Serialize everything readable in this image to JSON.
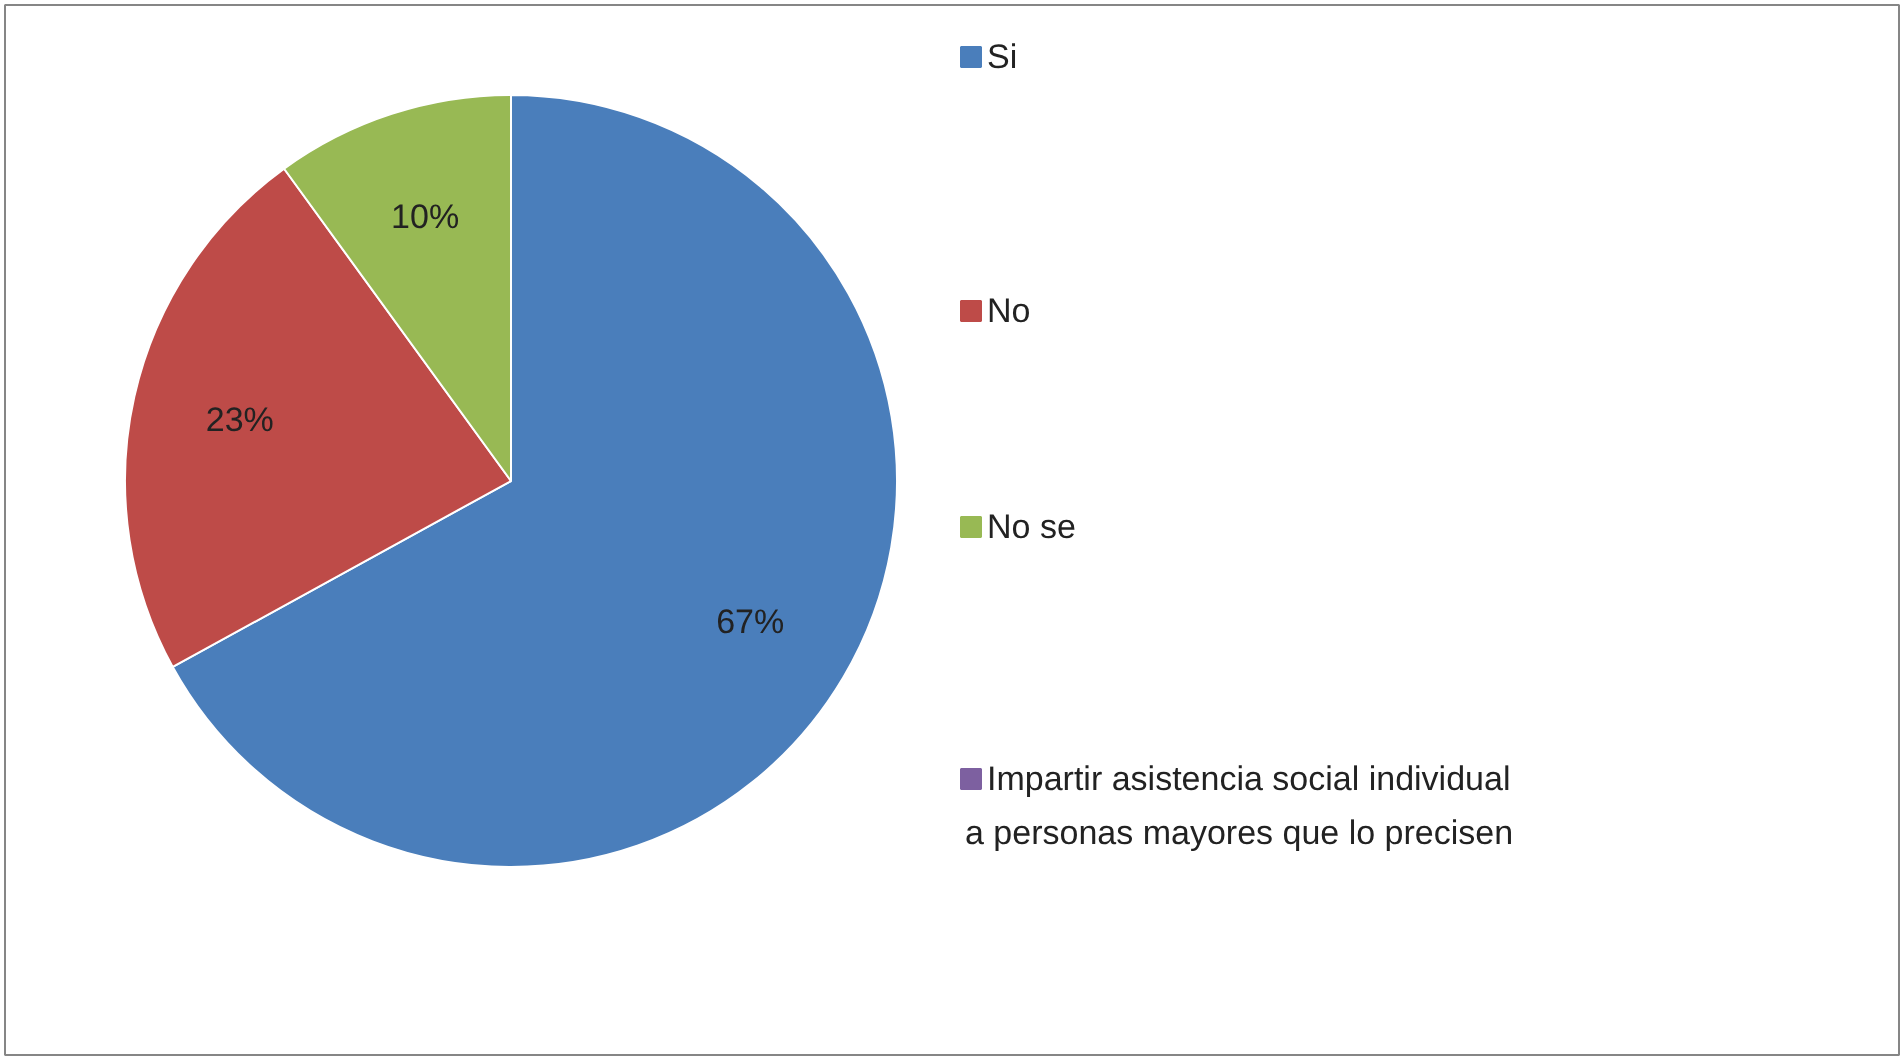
{
  "chart_data": {
    "type": "pie",
    "categories": [
      "Si",
      "No",
      "No se",
      "Impartir asistencia social individual a personas mayores que lo precisen"
    ],
    "values": [
      67,
      23,
      10,
      0
    ],
    "colors": [
      "#4a7ebb",
      "#be4b48",
      "#98b954",
      "#7d60a0"
    ],
    "value_labels": [
      "67%",
      "23%",
      "10%",
      null
    ],
    "legend": "right"
  }
}
